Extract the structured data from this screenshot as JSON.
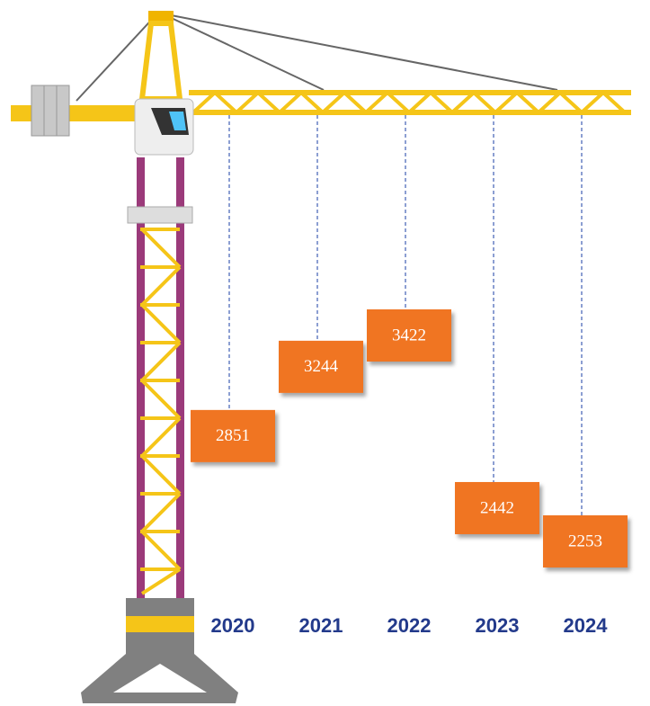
{
  "chart_data": {
    "type": "crane",
    "categories": [
      "2020",
      "2021",
      "2022",
      "2023",
      "2024"
    ],
    "values": [
      2851,
      3244,
      3422,
      2442,
      2253
    ],
    "color": "#f07422"
  }
}
